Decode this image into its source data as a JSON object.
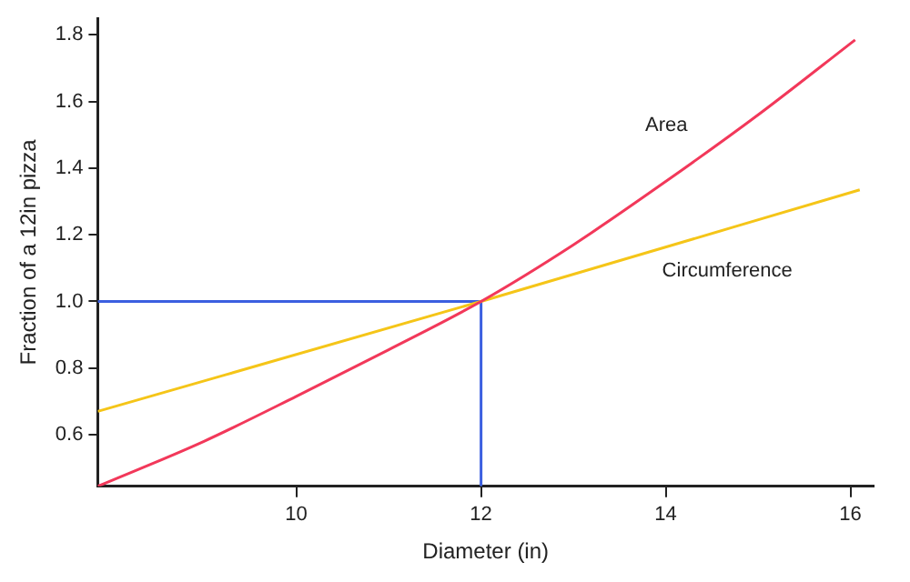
{
  "chart_data": {
    "type": "line",
    "xlabel": "Diameter (in)",
    "ylabel": "Fraction of a 12in pizza",
    "xlim": [
      7.85,
      16.25
    ],
    "ylim": [
      0.445,
      1.85
    ],
    "xticks": [
      10,
      12,
      14,
      16
    ],
    "yticks": [
      0.6,
      0.8,
      {
        "value": 1,
        "label": "1.0"
      },
      1.2,
      1.4,
      1.6,
      1.8
    ],
    "grid": false,
    "legend": false,
    "marker": "none",
    "line_style": "solid",
    "series": [
      {
        "name": "Area",
        "color": "#f2385a",
        "x": [
          7.85,
          9,
          10,
          11,
          12,
          13,
          14,
          15,
          16.05
        ],
        "values": [
          0.445,
          0.58,
          0.715,
          0.855,
          1.0,
          1.17,
          1.36,
          1.56,
          1.785
        ]
      },
      {
        "name": "Circumference",
        "color": "#f5c518",
        "x": [
          7.85,
          12,
          16.1
        ],
        "values": [
          0.67,
          1.0,
          1.335
        ]
      },
      {
        "color": "#3b5fe0",
        "x": [
          7.85,
          12,
          12
        ],
        "values": [
          1.0,
          1.0,
          0.445
        ]
      }
    ]
  }
}
